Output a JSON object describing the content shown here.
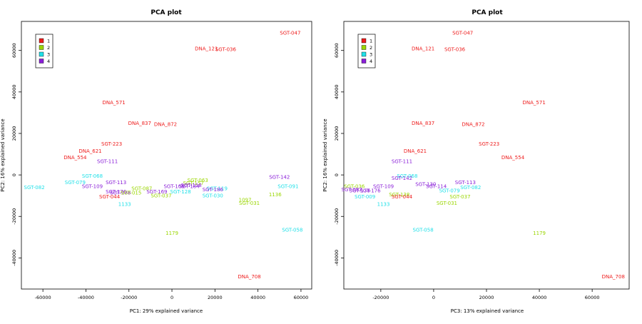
{
  "colors": {
    "1": "#ee1c1c",
    "2": "#9ad600",
    "3": "#20e0e8",
    "4": "#8a1fd8"
  },
  "legend_labels": [
    "1",
    "2",
    "3",
    "4"
  ],
  "chart_data": [
    {
      "type": "scatter",
      "title": "PCA plot",
      "xlabel": "PC1: 29% explained variance",
      "ylabel": "PC2: 16% explained variance",
      "xlim": [
        -70000,
        65000
      ],
      "ylim": [
        -55000,
        74000
      ],
      "xticks": [
        -60000,
        -40000,
        -20000,
        0,
        20000,
        40000,
        60000
      ],
      "yticks": [
        -40000,
        -20000,
        0,
        20000,
        40000,
        60000
      ],
      "legend_position": "top-left",
      "points": [
        {
          "label": "SGT-047",
          "x": 55000,
          "y": 68500,
          "group": "1"
        },
        {
          "label": "DNA_121",
          "x": 16000,
          "y": 61000,
          "group": "1"
        },
        {
          "label": "SGT-036",
          "x": 25000,
          "y": 60500,
          "group": "1"
        },
        {
          "label": "DNA_571",
          "x": -27000,
          "y": 35000,
          "group": "1"
        },
        {
          "label": "DNA_837",
          "x": -15000,
          "y": 25000,
          "group": "1"
        },
        {
          "label": "DNA_872",
          "x": -3000,
          "y": 24500,
          "group": "1"
        },
        {
          "label": "SGT-223",
          "x": -28000,
          "y": 15000,
          "group": "1"
        },
        {
          "label": "DNA_621",
          "x": -38000,
          "y": 11500,
          "group": "1"
        },
        {
          "label": "DNA_554",
          "x": -45000,
          "y": 8500,
          "group": "1"
        },
        {
          "label": "SGT-111",
          "x": -30000,
          "y": 6500,
          "group": "4"
        },
        {
          "label": "SGT-142",
          "x": 50000,
          "y": -1000,
          "group": "4"
        },
        {
          "label": "SGT-068",
          "x": -37000,
          "y": -500,
          "group": "3"
        },
        {
          "label": "SGT-113",
          "x": -26000,
          "y": -3500,
          "group": "4"
        },
        {
          "label": "SGT-079",
          "x": -45000,
          "y": -3500,
          "group": "3"
        },
        {
          "label": "SGT-082",
          "x": -64000,
          "y": -6000,
          "group": "3"
        },
        {
          "label": "SGT-109",
          "x": -37000,
          "y": -5500,
          "group": "4"
        },
        {
          "label": "SGT-091",
          "x": 54000,
          "y": -5500,
          "group": "3"
        },
        {
          "label": "SGT-063",
          "x": 12000,
          "y": -2500,
          "group": "2"
        },
        {
          "label": "SGT-157",
          "x": 10000,
          "y": -4000,
          "group": "2"
        },
        {
          "label": "SGT-118",
          "x": 9000,
          "y": -5000,
          "group": "4"
        },
        {
          "label": "SGT-105",
          "x": 1000,
          "y": -5500,
          "group": "4"
        },
        {
          "label": "SGT-184",
          "x": 8000,
          "y": -5500,
          "group": "4"
        },
        {
          "label": "SGT-119",
          "x": 21000,
          "y": -6500,
          "group": "3"
        },
        {
          "label": "SGT-186",
          "x": 19000,
          "y": -7000,
          "group": "4"
        },
        {
          "label": "SGT-087",
          "x": -14000,
          "y": -6500,
          "group": "2"
        },
        {
          "label": "SGT-176",
          "x": -26000,
          "y": -8000,
          "group": "4"
        },
        {
          "label": "SGT-178",
          "x": -24000,
          "y": -8500,
          "group": "4"
        },
        {
          "label": "SGT-015",
          "x": -19000,
          "y": -8500,
          "group": "2"
        },
        {
          "label": "SGT-169",
          "x": -7000,
          "y": -8000,
          "group": "4"
        },
        {
          "label": "SGT-128",
          "x": 4000,
          "y": -8000,
          "group": "3"
        },
        {
          "label": "SGT-037",
          "x": -5000,
          "y": -10000,
          "group": "2"
        },
        {
          "label": "SGT-030",
          "x": 19000,
          "y": -10000,
          "group": "3"
        },
        {
          "label": "1136",
          "x": 48000,
          "y": -9500,
          "group": "2"
        },
        {
          "label": "SGT-044",
          "x": -29000,
          "y": -10500,
          "group": "1"
        },
        {
          "label": "1097",
          "x": 34000,
          "y": -12000,
          "group": "2"
        },
        {
          "label": "SGT-031",
          "x": 36000,
          "y": -13500,
          "group": "2"
        },
        {
          "label": "1133",
          "x": -22000,
          "y": -14000,
          "group": "3"
        },
        {
          "label": "SGT-058",
          "x": 56000,
          "y": -26500,
          "group": "3"
        },
        {
          "label": "1179",
          "x": 0,
          "y": -28000,
          "group": "2"
        },
        {
          "label": "DNA_708",
          "x": 36000,
          "y": -49000,
          "group": "1"
        }
      ]
    },
    {
      "type": "scatter",
      "title": "PCA plot",
      "xlabel": "PC3: 13% explained variance",
      "ylabel": "PC2: 16% explained variance",
      "xlim": [
        -34000,
        74000
      ],
      "ylim": [
        -55000,
        74000
      ],
      "xticks": [
        -20000,
        0,
        20000,
        40000,
        60000
      ],
      "yticks": [
        -40000,
        -20000,
        0,
        20000,
        40000,
        60000
      ],
      "legend_position": "top-left",
      "points": [
        {
          "label": "SGT-047",
          "x": 11000,
          "y": 68500,
          "group": "1"
        },
        {
          "label": "DNA_121",
          "x": -4000,
          "y": 61000,
          "group": "1"
        },
        {
          "label": "SGT-036",
          "x": 8000,
          "y": 60500,
          "group": "1"
        },
        {
          "label": "DNA_571",
          "x": 38000,
          "y": 35000,
          "group": "1"
        },
        {
          "label": "DNA_837",
          "x": -4000,
          "y": 25000,
          "group": "1"
        },
        {
          "label": "DNA_872",
          "x": 15000,
          "y": 24500,
          "group": "1"
        },
        {
          "label": "SGT-223",
          "x": 21000,
          "y": 15000,
          "group": "1"
        },
        {
          "label": "DNA_621",
          "x": -7000,
          "y": 11500,
          "group": "1"
        },
        {
          "label": "DNA_554",
          "x": 30000,
          "y": 8500,
          "group": "1"
        },
        {
          "label": "SGT-111",
          "x": -12000,
          "y": 6500,
          "group": "4"
        },
        {
          "label": "SGT-068",
          "x": -10000,
          "y": -500,
          "group": "3"
        },
        {
          "label": "SGT-142",
          "x": -12000,
          "y": -1500,
          "group": "4"
        },
        {
          "label": "SGT-113",
          "x": 12000,
          "y": -3500,
          "group": "4"
        },
        {
          "label": "SGT-036",
          "x": -30000,
          "y": -5500,
          "group": "2"
        },
        {
          "label": "SGT-109",
          "x": -19000,
          "y": -5500,
          "group": "4"
        },
        {
          "label": "SGT-130",
          "x": -3000,
          "y": -4500,
          "group": "4"
        },
        {
          "label": "SGT-114",
          "x": 1000,
          "y": -5500,
          "group": "4"
        },
        {
          "label": "SGT-082",
          "x": 14000,
          "y": -6000,
          "group": "3"
        },
        {
          "label": "SGT-087",
          "x": -31000,
          "y": -7000,
          "group": "4"
        },
        {
          "label": "SGT-178",
          "x": -28000,
          "y": -7500,
          "group": "4"
        },
        {
          "label": "SGT-176",
          "x": -24000,
          "y": -7500,
          "group": "4"
        },
        {
          "label": "SGT-079",
          "x": 6000,
          "y": -7500,
          "group": "3"
        },
        {
          "label": "SGT-138",
          "x": -13000,
          "y": -9500,
          "group": "2"
        },
        {
          "label": "SGT-009",
          "x": -26000,
          "y": -10500,
          "group": "3"
        },
        {
          "label": "SGT-044",
          "x": -12000,
          "y": -10500,
          "group": "1"
        },
        {
          "label": "SGT-037",
          "x": 10000,
          "y": -10500,
          "group": "2"
        },
        {
          "label": "SGT-031",
          "x": 5000,
          "y": -13500,
          "group": "2"
        },
        {
          "label": "1133",
          "x": -19000,
          "y": -14000,
          "group": "3"
        },
        {
          "label": "SGT-058",
          "x": -4000,
          "y": -26500,
          "group": "3"
        },
        {
          "label": "1179",
          "x": 40000,
          "y": -28000,
          "group": "2"
        },
        {
          "label": "DNA_708",
          "x": 68000,
          "y": -49000,
          "group": "1"
        }
      ]
    }
  ]
}
